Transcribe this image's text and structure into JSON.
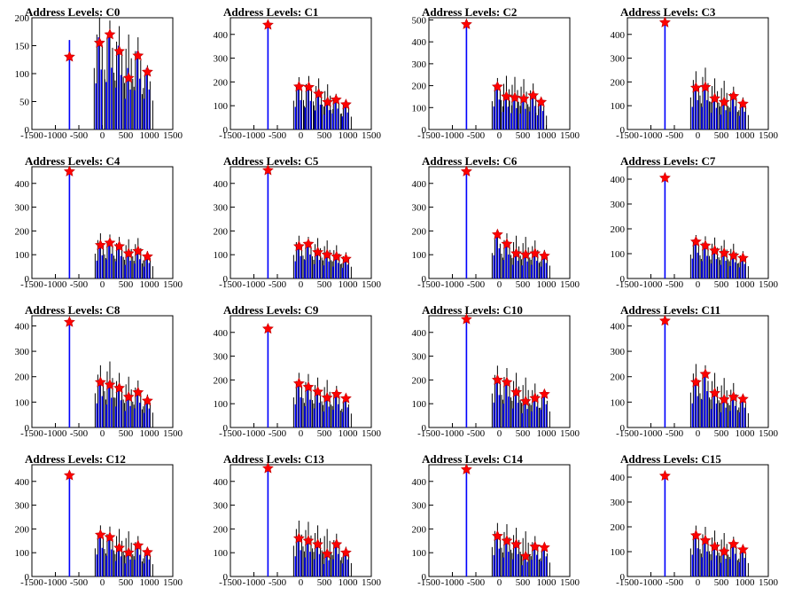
{
  "figure": {
    "background": "#ffffff",
    "colors": {
      "black_trace": "#000000",
      "blue_trace": "#0000ff",
      "peak_marker": "#ff0000",
      "marker_edge": "#c00000"
    }
  },
  "chart_data": [
    {
      "type": "histogram",
      "title": "Address Levels: C0",
      "xlim": [
        -1500,
        1500
      ],
      "ylim": [
        0,
        200
      ],
      "yticks": [
        0,
        50,
        100,
        150,
        200
      ],
      "xticks": [
        -1500,
        -1000,
        -500,
        0,
        500,
        1000,
        1500
      ],
      "grid": false,
      "peaks": [
        {
          "x": -700,
          "black": 160,
          "blue": 160,
          "marker": 130
        },
        {
          "x": -60,
          "black": 200,
          "blue": 165,
          "marker": 155
        },
        {
          "x": 160,
          "black": 195,
          "blue": 170,
          "marker": 170
        },
        {
          "x": 360,
          "black": 185,
          "blue": 150,
          "marker": 140
        },
        {
          "x": 560,
          "black": 170,
          "blue": 110,
          "marker": 92
        },
        {
          "x": 760,
          "black": 165,
          "blue": 140,
          "marker": 132
        },
        {
          "x": 960,
          "black": 115,
          "blue": 110,
          "marker": 103
        }
      ]
    },
    {
      "type": "histogram",
      "title": "Address Levels: C1",
      "xlim": [
        -1500,
        1500
      ],
      "ylim": [
        0,
        470
      ],
      "yticks": [
        0,
        100,
        200,
        300,
        400
      ],
      "xticks": [
        -1500,
        -1000,
        -500,
        0,
        500,
        1000,
        1500
      ],
      "grid": false,
      "peaks": [
        {
          "x": -700,
          "black": 450,
          "blue": 450,
          "marker": 440
        },
        {
          "x": -40,
          "black": 220,
          "blue": 190,
          "marker": 180
        },
        {
          "x": 170,
          "black": 225,
          "blue": 185,
          "marker": 178
        },
        {
          "x": 380,
          "black": 215,
          "blue": 160,
          "marker": 150
        },
        {
          "x": 570,
          "black": 190,
          "blue": 125,
          "marker": 115
        },
        {
          "x": 750,
          "black": 150,
          "blue": 135,
          "marker": 125
        },
        {
          "x": 960,
          "black": 120,
          "blue": 110,
          "marker": 105
        }
      ]
    },
    {
      "type": "histogram",
      "title": "Address Levels: C2",
      "xlim": [
        -1500,
        1500
      ],
      "ylim": [
        0,
        510
      ],
      "yticks": [
        0,
        100,
        200,
        300,
        400,
        500
      ],
      "xticks": [
        -1500,
        -1000,
        -500,
        0,
        500,
        1000,
        1500
      ],
      "grid": false,
      "peaks": [
        {
          "x": -700,
          "black": 500,
          "blue": 490,
          "marker": 480
        },
        {
          "x": -40,
          "black": 235,
          "blue": 210,
          "marker": 195
        },
        {
          "x": 150,
          "black": 245,
          "blue": 160,
          "marker": 150
        },
        {
          "x": 330,
          "black": 240,
          "blue": 150,
          "marker": 145
        },
        {
          "x": 520,
          "black": 230,
          "blue": 145,
          "marker": 140
        },
        {
          "x": 720,
          "black": 210,
          "blue": 165,
          "marker": 155
        },
        {
          "x": 890,
          "black": 140,
          "blue": 130,
          "marker": 125
        }
      ]
    },
    {
      "type": "histogram",
      "title": "Address Levels: C3",
      "xlim": [
        -1500,
        1500
      ],
      "ylim": [
        0,
        470
      ],
      "yticks": [
        0,
        100,
        200,
        300,
        400
      ],
      "xticks": [
        -1500,
        -1000,
        -500,
        0,
        500,
        1000,
        1500
      ],
      "grid": false,
      "peaks": [
        {
          "x": -700,
          "black": 460,
          "blue": 460,
          "marker": 450
        },
        {
          "x": -40,
          "black": 245,
          "blue": 190,
          "marker": 175
        },
        {
          "x": 160,
          "black": 260,
          "blue": 190,
          "marker": 178
        },
        {
          "x": 360,
          "black": 215,
          "blue": 140,
          "marker": 130
        },
        {
          "x": 560,
          "black": 205,
          "blue": 125,
          "marker": 115
        },
        {
          "x": 760,
          "black": 180,
          "blue": 150,
          "marker": 140
        },
        {
          "x": 960,
          "black": 135,
          "blue": 115,
          "marker": 108
        }
      ]
    },
    {
      "type": "histogram",
      "title": "Address Levels: C4",
      "xlim": [
        -1500,
        1500
      ],
      "ylim": [
        0,
        470
      ],
      "yticks": [
        0,
        100,
        200,
        300,
        400
      ],
      "xticks": [
        -1500,
        -1000,
        -500,
        0,
        500,
        1000,
        1500
      ],
      "grid": false,
      "peaks": [
        {
          "x": -700,
          "black": 460,
          "blue": 460,
          "marker": 450
        },
        {
          "x": -40,
          "black": 190,
          "blue": 150,
          "marker": 140
        },
        {
          "x": 160,
          "black": 185,
          "blue": 160,
          "marker": 150
        },
        {
          "x": 360,
          "black": 175,
          "blue": 145,
          "marker": 135
        },
        {
          "x": 560,
          "black": 165,
          "blue": 115,
          "marker": 105
        },
        {
          "x": 760,
          "black": 170,
          "blue": 125,
          "marker": 115
        },
        {
          "x": 960,
          "black": 115,
          "blue": 100,
          "marker": 92
        }
      ]
    },
    {
      "type": "histogram",
      "title": "Address Levels: C5",
      "xlim": [
        -1500,
        1500
      ],
      "ylim": [
        0,
        470
      ],
      "yticks": [
        0,
        100,
        200,
        300,
        400
      ],
      "xticks": [
        -1500,
        -1000,
        -500,
        0,
        500,
        1000,
        1500
      ],
      "grid": false,
      "peaks": [
        {
          "x": -700,
          "black": 460,
          "blue": 460,
          "marker": 455
        },
        {
          "x": -40,
          "black": 180,
          "blue": 145,
          "marker": 135
        },
        {
          "x": 160,
          "black": 175,
          "blue": 155,
          "marker": 145
        },
        {
          "x": 360,
          "black": 170,
          "blue": 120,
          "marker": 110
        },
        {
          "x": 560,
          "black": 160,
          "blue": 110,
          "marker": 100
        },
        {
          "x": 760,
          "black": 140,
          "blue": 100,
          "marker": 92
        },
        {
          "x": 960,
          "black": 110,
          "blue": 90,
          "marker": 82
        }
      ]
    },
    {
      "type": "histogram",
      "title": "Address Levels: C6",
      "xlim": [
        -1500,
        1500
      ],
      "ylim": [
        0,
        470
      ],
      "yticks": [
        0,
        100,
        200,
        300,
        400
      ],
      "xticks": [
        -1500,
        -1000,
        -500,
        0,
        500,
        1000,
        1500
      ],
      "grid": false,
      "peaks": [
        {
          "x": -700,
          "black": 470,
          "blue": 460,
          "marker": 450
        },
        {
          "x": -40,
          "black": 195,
          "blue": 195,
          "marker": 185
        },
        {
          "x": 160,
          "black": 190,
          "blue": 155,
          "marker": 145
        },
        {
          "x": 360,
          "black": 180,
          "blue": 115,
          "marker": 105
        },
        {
          "x": 560,
          "black": 175,
          "blue": 110,
          "marker": 100
        },
        {
          "x": 760,
          "black": 160,
          "blue": 115,
          "marker": 105
        },
        {
          "x": 960,
          "black": 120,
          "blue": 100,
          "marker": 95
        }
      ]
    },
    {
      "type": "histogram",
      "title": "Address Levels: C7",
      "xlim": [
        -1500,
        1500
      ],
      "ylim": [
        0,
        450
      ],
      "yticks": [
        0,
        100,
        200,
        300,
        400
      ],
      "xticks": [
        -1500,
        -1000,
        -500,
        0,
        500,
        1000,
        1500
      ],
      "grid": false,
      "peaks": [
        {
          "x": -700,
          "black": 410,
          "blue": 410,
          "marker": 405
        },
        {
          "x": -40,
          "black": 175,
          "blue": 160,
          "marker": 148
        },
        {
          "x": 160,
          "black": 170,
          "blue": 140,
          "marker": 132
        },
        {
          "x": 360,
          "black": 165,
          "blue": 120,
          "marker": 112
        },
        {
          "x": 560,
          "black": 155,
          "blue": 110,
          "marker": 102
        },
        {
          "x": 760,
          "black": 140,
          "blue": 100,
          "marker": 92
        },
        {
          "x": 960,
          "black": 110,
          "blue": 90,
          "marker": 82
        }
      ]
    },
    {
      "type": "histogram",
      "title": "Address Levels: C8",
      "xlim": [
        -1500,
        1500
      ],
      "ylim": [
        0,
        440
      ],
      "yticks": [
        0,
        100,
        200,
        300,
        400
      ],
      "xticks": [
        -1500,
        -1000,
        -500,
        0,
        500,
        1000,
        1500
      ],
      "grid": false,
      "peaks": [
        {
          "x": -700,
          "black": 420,
          "blue": 420,
          "marker": 415
        },
        {
          "x": -40,
          "black": 245,
          "blue": 190,
          "marker": 178
        },
        {
          "x": 160,
          "black": 260,
          "blue": 180,
          "marker": 168
        },
        {
          "x": 360,
          "black": 215,
          "blue": 165,
          "marker": 155
        },
        {
          "x": 560,
          "black": 200,
          "blue": 130,
          "marker": 120
        },
        {
          "x": 760,
          "black": 185,
          "blue": 150,
          "marker": 138
        },
        {
          "x": 960,
          "black": 130,
          "blue": 115,
          "marker": 105
        }
      ]
    },
    {
      "type": "histogram",
      "title": "Address Levels: C9",
      "xlim": [
        -1500,
        1500
      ],
      "ylim": [
        0,
        470
      ],
      "yticks": [
        0,
        100,
        200,
        300,
        400
      ],
      "xticks": [
        -1500,
        -1000,
        -500,
        0,
        500,
        1000,
        1500
      ],
      "grid": false,
      "peaks": [
        {
          "x": -700,
          "black": 420,
          "blue": 420,
          "marker": 415
        },
        {
          "x": -40,
          "black": 230,
          "blue": 195,
          "marker": 185
        },
        {
          "x": 160,
          "black": 225,
          "blue": 180,
          "marker": 170
        },
        {
          "x": 360,
          "black": 210,
          "blue": 160,
          "marker": 150
        },
        {
          "x": 560,
          "black": 200,
          "blue": 135,
          "marker": 125
        },
        {
          "x": 760,
          "black": 175,
          "blue": 150,
          "marker": 140
        },
        {
          "x": 960,
          "black": 130,
          "blue": 130,
          "marker": 122
        }
      ]
    },
    {
      "type": "histogram",
      "title": "Address Levels: C10",
      "xlim": [
        -1500,
        1500
      ],
      "ylim": [
        0,
        470
      ],
      "yticks": [
        0,
        100,
        200,
        300,
        400
      ],
      "xticks": [
        -1500,
        -1000,
        -500,
        0,
        500,
        1000,
        1500
      ],
      "grid": false,
      "peaks": [
        {
          "x": -700,
          "black": 460,
          "blue": 460,
          "marker": 455
        },
        {
          "x": -40,
          "black": 260,
          "blue": 210,
          "marker": 200
        },
        {
          "x": 160,
          "black": 250,
          "blue": 200,
          "marker": 190
        },
        {
          "x": 360,
          "black": 230,
          "blue": 160,
          "marker": 148
        },
        {
          "x": 560,
          "black": 210,
          "blue": 120,
          "marker": 110
        },
        {
          "x": 760,
          "black": 185,
          "blue": 135,
          "marker": 123
        },
        {
          "x": 960,
          "black": 150,
          "blue": 150,
          "marker": 140
        }
      ]
    },
    {
      "type": "histogram",
      "title": "Address Levels: C11",
      "xlim": [
        -1500,
        1500
      ],
      "ylim": [
        0,
        440
      ],
      "yticks": [
        0,
        100,
        200,
        300,
        400
      ],
      "xticks": [
        -1500,
        -1000,
        -500,
        0,
        500,
        1000,
        1500
      ],
      "grid": false,
      "peaks": [
        {
          "x": -700,
          "black": 430,
          "blue": 430,
          "marker": 420
        },
        {
          "x": -40,
          "black": 250,
          "blue": 190,
          "marker": 178
        },
        {
          "x": 160,
          "black": 245,
          "blue": 220,
          "marker": 210
        },
        {
          "x": 360,
          "black": 215,
          "blue": 145,
          "marker": 135
        },
        {
          "x": 560,
          "black": 195,
          "blue": 120,
          "marker": 110
        },
        {
          "x": 760,
          "black": 175,
          "blue": 130,
          "marker": 120
        },
        {
          "x": 960,
          "black": 125,
          "blue": 120,
          "marker": 112
        }
      ]
    },
    {
      "type": "histogram",
      "title": "Address Levels: C12",
      "xlim": [
        -1500,
        1500
      ],
      "ylim": [
        0,
        470
      ],
      "yticks": [
        0,
        100,
        200,
        300,
        400
      ],
      "xticks": [
        -1500,
        -1000,
        -500,
        0,
        500,
        1000,
        1500
      ],
      "grid": false,
      "peaks": [
        {
          "x": -700,
          "black": 430,
          "blue": 430,
          "marker": 425
        },
        {
          "x": -40,
          "black": 215,
          "blue": 185,
          "marker": 175
        },
        {
          "x": 160,
          "black": 210,
          "blue": 175,
          "marker": 165
        },
        {
          "x": 360,
          "black": 200,
          "blue": 130,
          "marker": 120
        },
        {
          "x": 560,
          "black": 190,
          "blue": 110,
          "marker": 100
        },
        {
          "x": 760,
          "black": 170,
          "blue": 140,
          "marker": 130
        },
        {
          "x": 960,
          "black": 115,
          "blue": 110,
          "marker": 102
        }
      ]
    },
    {
      "type": "histogram",
      "title": "Address Levels: C13",
      "xlim": [
        -1500,
        1500
      ],
      "ylim": [
        0,
        470
      ],
      "yticks": [
        0,
        100,
        200,
        300,
        400
      ],
      "xticks": [
        -1500,
        -1000,
        -500,
        0,
        500,
        1000,
        1500
      ],
      "grid": false,
      "peaks": [
        {
          "x": -700,
          "black": 460,
          "blue": 460,
          "marker": 455
        },
        {
          "x": -40,
          "black": 235,
          "blue": 170,
          "marker": 160
        },
        {
          "x": 160,
          "black": 230,
          "blue": 160,
          "marker": 150
        },
        {
          "x": 360,
          "black": 215,
          "blue": 145,
          "marker": 135
        },
        {
          "x": 560,
          "black": 200,
          "blue": 105,
          "marker": 95
        },
        {
          "x": 760,
          "black": 180,
          "blue": 145,
          "marker": 135
        },
        {
          "x": 960,
          "black": 125,
          "blue": 110,
          "marker": 100
        }
      ]
    },
    {
      "type": "histogram",
      "title": "Address Levels: C14",
      "xlim": [
        -1500,
        1500
      ],
      "ylim": [
        0,
        470
      ],
      "yticks": [
        0,
        100,
        200,
        300,
        400
      ],
      "xticks": [
        -1500,
        -1000,
        -500,
        0,
        500,
        1000,
        1500
      ],
      "grid": false,
      "peaks": [
        {
          "x": -700,
          "black": 460,
          "blue": 460,
          "marker": 450
        },
        {
          "x": -40,
          "black": 225,
          "blue": 180,
          "marker": 170
        },
        {
          "x": 160,
          "black": 220,
          "blue": 160,
          "marker": 150
        },
        {
          "x": 360,
          "black": 205,
          "blue": 145,
          "marker": 135
        },
        {
          "x": 560,
          "black": 190,
          "blue": 95,
          "marker": 85
        },
        {
          "x": 760,
          "black": 170,
          "blue": 140,
          "marker": 125
        },
        {
          "x": 960,
          "black": 130,
          "blue": 130,
          "marker": 122
        }
      ]
    },
    {
      "type": "histogram",
      "title": "Address Levels: C15",
      "xlim": [
        -1500,
        1500
      ],
      "ylim": [
        0,
        450
      ],
      "yticks": [
        0,
        100,
        200,
        300,
        400
      ],
      "xticks": [
        -1500,
        -1000,
        -500,
        0,
        500,
        1000,
        1500
      ],
      "grid": false,
      "peaks": [
        {
          "x": -700,
          "black": 410,
          "blue": 410,
          "marker": 405
        },
        {
          "x": -40,
          "black": 205,
          "blue": 175,
          "marker": 165
        },
        {
          "x": 160,
          "black": 200,
          "blue": 155,
          "marker": 145
        },
        {
          "x": 360,
          "black": 185,
          "blue": 130,
          "marker": 120
        },
        {
          "x": 560,
          "black": 175,
          "blue": 110,
          "marker": 100
        },
        {
          "x": 760,
          "black": 160,
          "blue": 140,
          "marker": 130
        },
        {
          "x": 960,
          "black": 120,
          "blue": 115,
          "marker": 108
        }
      ]
    }
  ]
}
